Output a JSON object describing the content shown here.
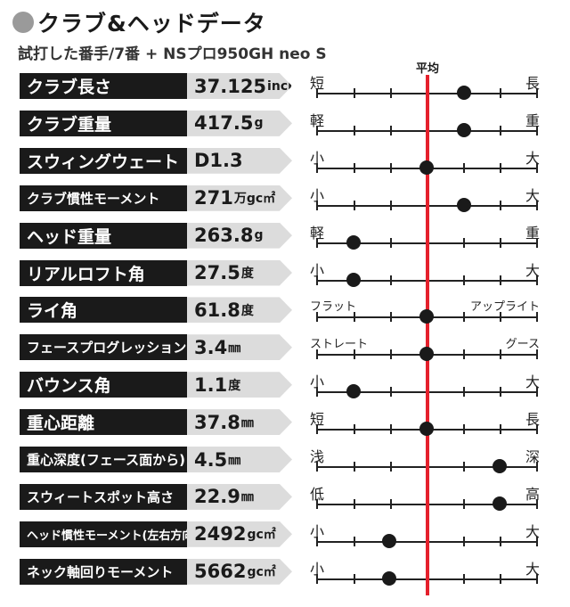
{
  "header": {
    "title": "クラブ&ヘッドデータ",
    "subtitle": "試打した番手/7番 + NSプロ950GH neo S",
    "average_label": "平均"
  },
  "colors": {
    "accent": "#e5202c",
    "label_bg": "#1a1a1a",
    "value_bg": "#dcdcdc"
  },
  "rows": [
    {
      "label": "クラブ長さ",
      "value": "37.125",
      "unit": "inch",
      "left": "短",
      "right": "長",
      "position": 0.67
    },
    {
      "label": "クラブ重量",
      "value": "417.5",
      "unit": "g",
      "left": "軽",
      "right": "重",
      "position": 0.67
    },
    {
      "label": "スウィングウェート",
      "value": "D1.3",
      "unit": "",
      "left": "小",
      "right": "大",
      "position": 0.5
    },
    {
      "label": "クラブ慣性モーメント",
      "value": "271",
      "unit": "万gc㎡",
      "left": "小",
      "right": "大",
      "position": 0.67
    },
    {
      "label": "ヘッド重量",
      "value": "263.8",
      "unit": "g",
      "left": "軽",
      "right": "重",
      "position": 0.17
    },
    {
      "label": "リアルロフト角",
      "value": "27.5",
      "unit": "度",
      "left": "小",
      "right": "大",
      "position": 0.17
    },
    {
      "label": "ライ角",
      "value": "61.8",
      "unit": "度",
      "left": "フラット",
      "right": "アップライト",
      "position": 0.5
    },
    {
      "label": "フェースプログレッション",
      "value": "3.4",
      "unit": "㎜",
      "left": "ストレート",
      "right": "グース",
      "position": 0.5
    },
    {
      "label": "バウンス角",
      "value": "1.1",
      "unit": "度",
      "left": "小",
      "right": "大",
      "position": 0.17
    },
    {
      "label": "重心距離",
      "value": "37.8",
      "unit": "㎜",
      "left": "短",
      "right": "長",
      "position": 0.5
    },
    {
      "label": "重心深度(フェース面から)",
      "value": "4.5",
      "unit": "㎜",
      "left": "浅",
      "right": "深",
      "position": 0.83
    },
    {
      "label": "スウィートスポット高さ",
      "value": "22.9",
      "unit": "㎜",
      "left": "低",
      "right": "高",
      "position": 0.83
    },
    {
      "label": "ヘッド慣性モーメント(左右方向)",
      "value": "2492",
      "unit": "gc㎡",
      "left": "小",
      "right": "大",
      "position": 0.33
    },
    {
      "label": "ネック軸回りモーメント",
      "value": "5662",
      "unit": "gc㎡",
      "left": "小",
      "right": "大",
      "position": 0.33
    }
  ]
}
